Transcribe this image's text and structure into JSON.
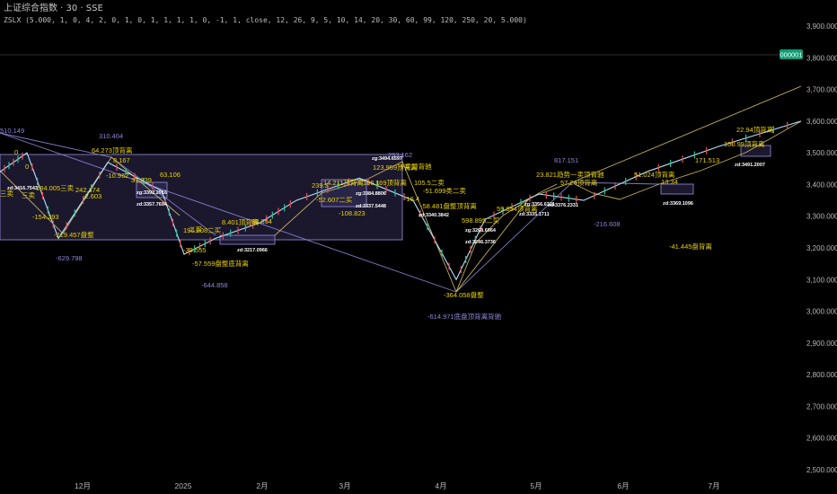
{
  "header": {
    "title": "上证综合指数 · 30 · SSE",
    "params": "ZSLX (5.000, 1, 0, 4, 2, 0, 1, 0, 1, 1, 1, 1, 0, -1, 1, close, 12, 26, 9, 5, 10, 14, 20, 30, 60, 99, 120, 250, 20, 5.000)"
  },
  "colors": {
    "background": "#000000",
    "annotation": "#e8d200",
    "pivot": "#8c86d8",
    "zone_fill": "#3b3566",
    "zone_border": "#9a8fe0",
    "trendline": "#d8c060",
    "price": "#b0e0ff",
    "badge": "#0d9c76"
  },
  "chart_data": {
    "type": "line",
    "x_axis": {
      "ticks": [
        "12月",
        "2025",
        "2月",
        "3月",
        "4月",
        "5月",
        "6月",
        "7月"
      ]
    },
    "y_axis": {
      "ticks": [
        "3,900.0000",
        "3,800.0000",
        "3,700.0000",
        "3,600.0000",
        "3,500.0000",
        "3,400.0000",
        "3,300.0000",
        "3,200.0000",
        "3,100.0000",
        "3,000.0000",
        "2,900.0000",
        "2,800.0000",
        "2,700.0000",
        "2,600.0000",
        "2,500.0000"
      ],
      "range": [
        2500,
        3900
      ]
    },
    "price_badge": "000001",
    "price_series": [
      {
        "x": "start",
        "y": 3440
      },
      {
        "x": "11月中",
        "y": 3500
      },
      {
        "x": "11月末",
        "y": 3230
      },
      {
        "x": "12月中",
        "y": 3470
      },
      {
        "x": "12月末",
        "y": 3380
      },
      {
        "x": "2025初",
        "y": 3180
      },
      {
        "x": "1月中",
        "y": 3230
      },
      {
        "x": "2月初",
        "y": 3280
      },
      {
        "x": "2月中",
        "y": 3350
      },
      {
        "x": "3月中",
        "y": 3420
      },
      {
        "x": "4月初",
        "y": 3350
      },
      {
        "x": "4月7日",
        "y": 3100
      },
      {
        "x": "4月末",
        "y": 3290
      },
      {
        "x": "5月中",
        "y": 3370
      },
      {
        "x": "6月初",
        "y": 3350
      },
      {
        "x": "6月末",
        "y": 3440
      },
      {
        "x": "7月中",
        "y": 3520
      },
      {
        "x": "7月末",
        "y": 3600
      }
    ],
    "pivot_labels": [
      "510.149",
      "310.404",
      "-629.798",
      "-644.858",
      "293.162",
      "817.151",
      "-216.608",
      "-614.971底盘顶背离背驰"
    ],
    "annotations": [
      "0",
      "0",
      "三卖",
      "184.005三卖",
      "-154.293",
      "-219.457盘整",
      "242.174",
      "-2.603",
      "64.273顶背离",
      "-10.962",
      "8.167",
      "31.839",
      "63.106",
      "196.008二买",
      "-33.555",
      "-57.559盘整底背离",
      "8.401顶背离",
      "88.854",
      "239.3",
      "14.211顶背离",
      "186.1",
      "169顶背离",
      "-52.607二买",
      "-108.823",
      "123.959顶背离",
      "一卖顶背驰",
      "105.5二卖",
      "-51.699类二卖",
      "-16.4",
      "-58.481盘整顶背离",
      "598.895二买",
      "59.854顶背离",
      "23.821趋势一卖顶背驰",
      "57.24顶背离",
      "51.024顶背离",
      "13.34",
      "-41.445盘背离",
      "171.513",
      "100.99顶背离",
      "22.94顶背离",
      "-364.058盘整",
      "三卖",
      "二买"
    ],
    "zone_labels": [
      "zg:3494.6597",
      "zg:3384.8806",
      "zd:3337.5448",
      "zd:3340.3842",
      "zg:3268.6964",
      "zd:3246.3736",
      "zg:3392.2916",
      "zd:3357.7694",
      "zd:3217.0966",
      "zd:3376.2331",
      "zd:3369.1096",
      "zd:3491.2007",
      "zd:3416.7543",
      "zg:3356.6321",
      "zd:3335.1711"
    ],
    "legend": "none",
    "grid": false
  }
}
